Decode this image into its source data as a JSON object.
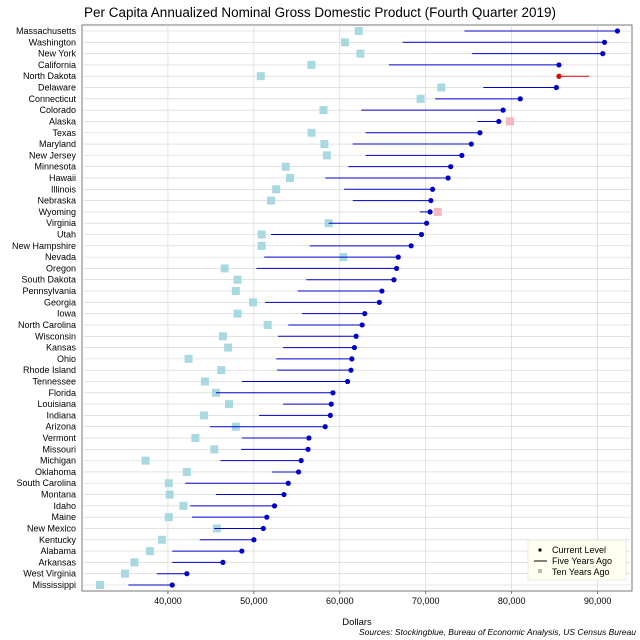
{
  "chart_data": {
    "type": "scatter",
    "title": "Per Capita Annualized Nominal Gross Domestic Product (Fourth Quarter 2019)",
    "xlabel": "Dollars",
    "ylabel": "",
    "xlim": [
      30000,
      94000
    ],
    "xticks": [
      40000,
      50000,
      60000,
      70000,
      80000,
      90000
    ],
    "xtick_labels": [
      "40,000",
      "50,000",
      "60,000",
      "70,000",
      "80,000",
      "90,000"
    ],
    "source": "Sources: Stockingblue, Bureau of Economic Analysis, US Census Bureau",
    "legend": {
      "position": "bottom-right",
      "entries": [
        "Current Level",
        "Five Years Ago",
        "Ten Years Ago"
      ]
    },
    "colors": {
      "current": "#0000cc",
      "current_below": "#dd0000",
      "ten_years": "#a8d8e0",
      "ten_years_above": "#f4b8c0",
      "grid": "#d0d0d0"
    },
    "states": [
      "Massachusetts",
      "Washington",
      "New York",
      "California",
      "North Dakota",
      "Delaware",
      "Connecticut",
      "Colorado",
      "Alaska",
      "Texas",
      "Maryland",
      "New Jersey",
      "Minnesota",
      "Hawaii",
      "Illinois",
      "Nebraska",
      "Wyoming",
      "Virginia",
      "Utah",
      "New Hampshire",
      "Nevada",
      "Oregon",
      "South Dakota",
      "Pennsylvania",
      "Georgia",
      "Iowa",
      "North Carolina",
      "Wisconsin",
      "Kansas",
      "Ohio",
      "Rhode Island",
      "Tennessee",
      "Florida",
      "Louisiana",
      "Indiana",
      "Arizona",
      "Vermont",
      "Missouri",
      "Michigan",
      "Oklahoma",
      "South Carolina",
      "Montana",
      "Idaho",
      "Maine",
      "New Mexico",
      "Kentucky",
      "Alabama",
      "Arkansas",
      "West Virginia",
      "Mississippi"
    ],
    "current": [
      92300,
      90800,
      90600,
      85500,
      85500,
      85200,
      81000,
      79000,
      78500,
      76300,
      75300,
      74200,
      72900,
      72600,
      70800,
      70600,
      70500,
      70100,
      69500,
      68300,
      66800,
      66600,
      66300,
      64900,
      64600,
      62900,
      62600,
      61900,
      61700,
      61400,
      61300,
      60900,
      59200,
      59000,
      58900,
      58300,
      56400,
      56300,
      55500,
      55200,
      54000,
      53500,
      52400,
      51500,
      51100,
      50000,
      48600,
      46400,
      42200,
      40500
    ],
    "five_years_ago": [
      74500,
      67300,
      75400,
      65700,
      89000,
      76700,
      71100,
      62500,
      76000,
      63000,
      61500,
      63000,
      61000,
      58300,
      60500,
      61500,
      69300,
      58700,
      52000,
      56500,
      51200,
      50300,
      56100,
      55100,
      51300,
      55600,
      54000,
      52800,
      53400,
      52600,
      52700,
      48600,
      45600,
      53400,
      50600,
      44900,
      48600,
      48500,
      46100,
      52100,
      42000,
      45600,
      42600,
      42800,
      45400,
      43700,
      40500,
      40500,
      38700,
      35400
    ],
    "ten_years_ago": [
      62200,
      60600,
      62400,
      56700,
      50800,
      71800,
      69400,
      58100,
      79800,
      56700,
      58200,
      58500,
      53700,
      54200,
      52600,
      52000,
      71400,
      58700,
      50900,
      50900,
      60400,
      46600,
      48100,
      47900,
      49900,
      48100,
      51600,
      46400,
      47000,
      42400,
      46200,
      44300,
      45600,
      47100,
      44200,
      47900,
      43200,
      45400,
      37400,
      42200,
      40100,
      40200,
      41800,
      40100,
      45700,
      39300,
      37900,
      36100,
      35000,
      32100
    ]
  }
}
